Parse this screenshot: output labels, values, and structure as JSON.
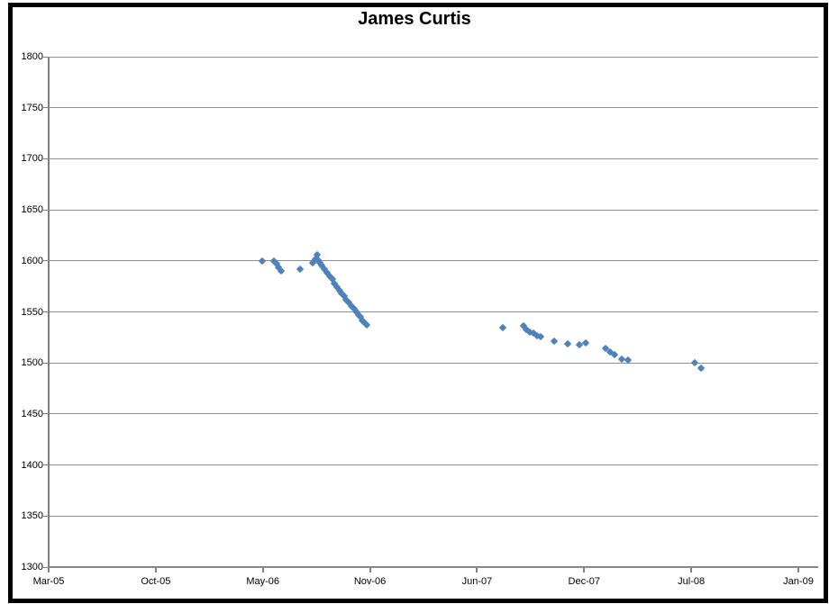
{
  "window": {
    "background_color": "#ffffff",
    "border_color": "#000000"
  },
  "chart_data": {
    "type": "scatter",
    "title": "James Curtis",
    "series_name": "James Curtis",
    "marker_color": "#4F81BD",
    "gridline_color": "#8f8f8f",
    "axis_color": "#7f7f7f",
    "grid": true,
    "legend": false,
    "ylim": [
      1300,
      1800
    ],
    "ytick_step": 50,
    "yticks": [
      1800,
      1750,
      1700,
      1650,
      1600,
      1550,
      1500,
      1450,
      1400,
      1350,
      1300
    ],
    "xtick_labels": [
      "Mar-05",
      "Oct-05",
      "May-06",
      "Nov-06",
      "Jun-07",
      "Dec-07",
      "Jul-08",
      "Jan-09"
    ],
    "points": [
      {
        "date": "Apr-06",
        "rating": 1600,
        "f": 0.2775
      },
      {
        "date": "May-06",
        "rating": 1600,
        "f": 0.2927
      },
      {
        "date": "May-06",
        "rating": 1597,
        "f": 0.2963
      },
      {
        "date": "May-06",
        "rating": 1594,
        "f": 0.2986
      },
      {
        "date": "May-06",
        "rating": 1590,
        "f": 0.3021
      },
      {
        "date": "Jun-06",
        "rating": 1592,
        "f": 0.3267
      },
      {
        "date": "Jul-06",
        "rating": 1598,
        "f": 0.3431
      },
      {
        "date": "Jul-06",
        "rating": 1602,
        "f": 0.3466
      },
      {
        "date": "Jul-06",
        "rating": 1606,
        "f": 0.3489
      },
      {
        "date": "Jul-06",
        "rating": 1601,
        "f": 0.3501
      },
      {
        "date": "Aug-06",
        "rating": 1598,
        "f": 0.3524
      },
      {
        "date": "Aug-06",
        "rating": 1595,
        "f": 0.3548
      },
      {
        "date": "Aug-06",
        "rating": 1592,
        "f": 0.3583
      },
      {
        "date": "Aug-06",
        "rating": 1588,
        "f": 0.3618
      },
      {
        "date": "Aug-06",
        "rating": 1585,
        "f": 0.3653
      },
      {
        "date": "Aug-06",
        "rating": 1582,
        "f": 0.3689
      },
      {
        "date": "Aug-06",
        "rating": 1578,
        "f": 0.3712
      },
      {
        "date": "Sep-06",
        "rating": 1574,
        "f": 0.3747
      },
      {
        "date": "Sep-06",
        "rating": 1571,
        "f": 0.3782
      },
      {
        "date": "Sep-06",
        "rating": 1568,
        "f": 0.3806
      },
      {
        "date": "Sep-06",
        "rating": 1565,
        "f": 0.3841
      },
      {
        "date": "Sep-06",
        "rating": 1562,
        "f": 0.3864
      },
      {
        "date": "Sep-06",
        "rating": 1559,
        "f": 0.3899
      },
      {
        "date": "Sep-06",
        "rating": 1556,
        "f": 0.3934
      },
      {
        "date": "Oct-06",
        "rating": 1553,
        "f": 0.397
      },
      {
        "date": "Oct-06",
        "rating": 1550,
        "f": 0.4005
      },
      {
        "date": "Oct-06",
        "rating": 1547,
        "f": 0.4028
      },
      {
        "date": "Oct-06",
        "rating": 1545,
        "f": 0.4052
      },
      {
        "date": "Oct-06",
        "rating": 1542,
        "f": 0.4075
      },
      {
        "date": "Oct-06",
        "rating": 1540,
        "f": 0.4099
      },
      {
        "date": "Oct-06",
        "rating": 1537,
        "f": 0.4134
      },
      {
        "date": "Jul-07",
        "rating": 1535,
        "f": 0.5902
      },
      {
        "date": "Aug-07",
        "rating": 1536,
        "f": 0.6171
      },
      {
        "date": "Aug-07",
        "rating": 1533,
        "f": 0.6206
      },
      {
        "date": "Sep-07",
        "rating": 1530,
        "f": 0.6253
      },
      {
        "date": "Sep-07",
        "rating": 1529,
        "f": 0.63
      },
      {
        "date": "Sep-07",
        "rating": 1527,
        "f": 0.6347
      },
      {
        "date": "Sep-07",
        "rating": 1526,
        "f": 0.6394
      },
      {
        "date": "Oct-07",
        "rating": 1521,
        "f": 0.6569
      },
      {
        "date": "Nov-07",
        "rating": 1519,
        "f": 0.6745
      },
      {
        "date": "Nov-07",
        "rating": 1518,
        "f": 0.6897
      },
      {
        "date": "Dec-07",
        "rating": 1520,
        "f": 0.6979
      },
      {
        "date": "Jan-08",
        "rating": 1514,
        "f": 0.7237
      },
      {
        "date": "Jan-08",
        "rating": 1511,
        "f": 0.7295
      },
      {
        "date": "Jan-08",
        "rating": 1508,
        "f": 0.7354
      },
      {
        "date": "Feb-08",
        "rating": 1504,
        "f": 0.7447
      },
      {
        "date": "Feb-08",
        "rating": 1503,
        "f": 0.7529
      },
      {
        "date": "Jul-08",
        "rating": 1500,
        "f": 0.8396
      },
      {
        "date": "Jul-08",
        "rating": 1495,
        "f": 0.8478
      }
    ]
  }
}
